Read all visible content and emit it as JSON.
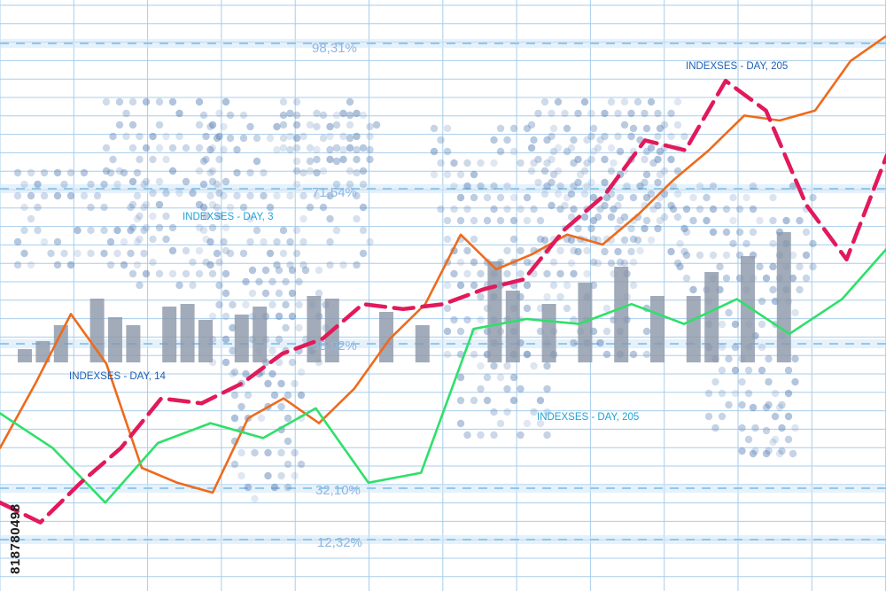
{
  "watermark_id": "818780498",
  "colors": {
    "background": "#ffffff",
    "grid": "#a8cdea",
    "bars": "#8d99a9",
    "dots": "#5f86b8",
    "orange": "#ef6a1c",
    "green": "#2ee06a",
    "magenta": "#e2195b",
    "label_blue": "#1f5fb5",
    "label_cyan": "#1fa2d6",
    "percent_text": "#8fb6e0"
  },
  "chart_data": {
    "type": "line",
    "title": "",
    "xlabel": "",
    "ylabel": "",
    "grid": true,
    "ylim": [
      0,
      100
    ],
    "y_tick_labels": [
      "98,31%",
      "71,54%",
      "58,02%",
      "32,10%",
      "12,32%"
    ],
    "annotations": [
      {
        "text": "INDEXSES - DAY, 205",
        "color": "blue"
      },
      {
        "text": "INDEXSES - DAY, 3",
        "color": "cyan"
      },
      {
        "text": "INDEXSES - DAY, 14",
        "color": "blue"
      },
      {
        "text": "INDEXSES - DAY, 205",
        "color": "cyan"
      }
    ],
    "bars": {
      "x": [
        0,
        1,
        2,
        3,
        4,
        5,
        6,
        7,
        8,
        9,
        10,
        11,
        12,
        13,
        14,
        15,
        16,
        17,
        18,
        19,
        20,
        21,
        22,
        23,
        24,
        25,
        26,
        27,
        28,
        29,
        30,
        31,
        32,
        33,
        34,
        35,
        36,
        37,
        38,
        39,
        40,
        41,
        42,
        43,
        44,
        45,
        46,
        47,
        48,
        49
      ],
      "values": [
        5,
        8,
        14,
        0,
        24,
        17,
        14,
        0,
        21,
        22,
        16,
        0,
        18,
        21,
        0,
        0,
        25,
        24,
        0,
        0,
        19,
        0,
        14,
        0,
        0,
        0,
        38,
        27,
        0,
        22,
        0,
        30,
        0,
        36,
        0,
        25,
        0,
        25,
        34,
        0,
        40,
        0,
        49,
        0,
        0,
        0,
        0,
        0,
        0,
        0
      ]
    },
    "series": [
      {
        "color": "orange",
        "style": "solid",
        "x": [
          0,
          1,
          2,
          3,
          4,
          5,
          6,
          7,
          8,
          9,
          10,
          11,
          12,
          13,
          14,
          15,
          16,
          17,
          18,
          19,
          20,
          21,
          22,
          23,
          24,
          25
        ],
        "values": [
          24,
          37,
          51,
          41,
          20,
          17,
          15,
          30,
          34,
          29,
          36,
          46,
          53,
          67,
          60,
          63,
          67,
          65,
          71,
          78,
          84,
          91,
          90,
          92,
          102,
          107
        ]
      },
      {
        "color": "green",
        "style": "solid",
        "x": [
          0,
          1,
          2,
          3,
          4,
          5,
          6,
          7,
          8,
          9,
          10,
          11,
          12,
          13,
          14,
          15,
          16,
          17,
          18
        ],
        "values": [
          31,
          24,
          13,
          25,
          29,
          26,
          32,
          17,
          19,
          48,
          50,
          49,
          53,
          49,
          54,
          47,
          54,
          66,
          73
        ]
      },
      {
        "color": "magenta",
        "style": "dashed",
        "x": [
          0,
          1,
          2,
          3,
          4,
          5,
          6,
          7,
          8,
          9,
          10,
          11,
          12,
          13,
          14,
          15,
          16,
          17,
          18,
          19,
          20,
          21,
          22
        ],
        "values": [
          13,
          9,
          17,
          24,
          34,
          33,
          37,
          43,
          46,
          53,
          52,
          53,
          56,
          58,
          68,
          75,
          86,
          84,
          98,
          92,
          73,
          62,
          83
        ]
      }
    ]
  }
}
